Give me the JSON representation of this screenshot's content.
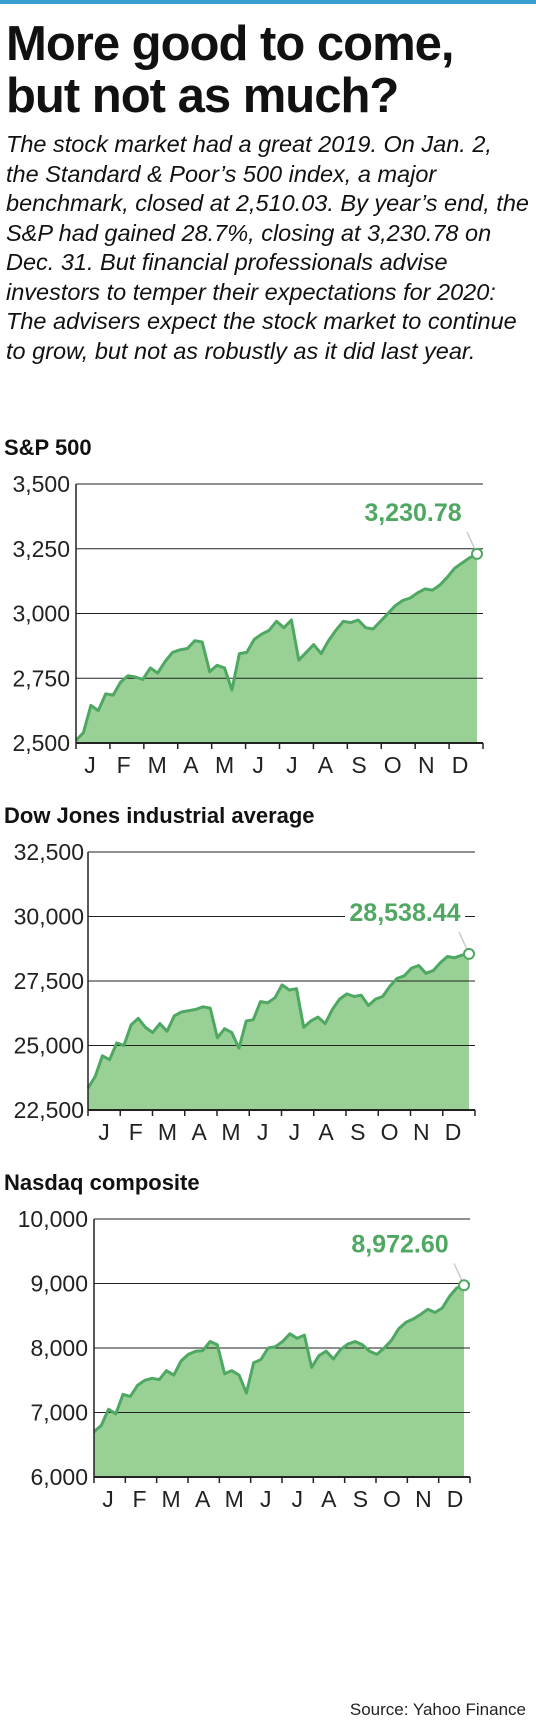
{
  "headline": "More good to come, but not as much?",
  "intro": "The stock market had a great 2019. On Jan. 2, the Standard & Poor’s 500 index, a major benchmark, closed at 2,510.03. By year’s end, the S&P had gained 28.7%, closing at 3,230.78 on Dec. 31. But financial professionals advise investors to temper their expectations for 2020: The advisers expect the stock market to continue to grow, but not as robustly as it did last year.",
  "source": "Source: Yahoo Finance",
  "colors": {
    "fill": "#99d096",
    "line": "#4ea862",
    "label": "#4ea862",
    "rule": "#3a9fd0"
  },
  "chart_data": [
    {
      "type": "area",
      "title": "S&P 500",
      "x_ticks": [
        "J",
        "F",
        "M",
        "A",
        "M",
        "J",
        "J",
        "A",
        "S",
        "O",
        "N",
        "D"
      ],
      "y_ticks": [
        "3,500",
        "3,250",
        "3,000",
        "2,750",
        "2,500"
      ],
      "ylim": [
        2500,
        3500
      ],
      "grid": true,
      "end_label": "3,230.78",
      "series": [
        {
          "values": [
            2510,
            2540,
            2645,
            2625,
            2690,
            2685,
            2735,
            2760,
            2755,
            2745,
            2790,
            2770,
            2815,
            2850,
            2860,
            2865,
            2895,
            2890,
            2775,
            2800,
            2790,
            2705,
            2845,
            2850,
            2900,
            2920,
            2935,
            2970,
            2945,
            2975,
            2820,
            2850,
            2880,
            2845,
            2895,
            2935,
            2970,
            2965,
            2975,
            2945,
            2940,
            2970,
            3000,
            3030,
            3050,
            3060,
            3080,
            3095,
            3090,
            3110,
            3140,
            3175,
            3195,
            3215,
            3230
          ]
        }
      ]
    },
    {
      "type": "area",
      "title": "Dow Jones industrial average",
      "x_ticks": [
        "J",
        "F",
        "M",
        "A",
        "M",
        "J",
        "J",
        "A",
        "S",
        "O",
        "N",
        "D"
      ],
      "y_ticks": [
        "32,500",
        "30,000",
        "27,500",
        "25,000",
        "22,500"
      ],
      "ylim": [
        22500,
        32500
      ],
      "grid": true,
      "end_label": "28,538.44",
      "series": [
        {
          "values": [
            23350,
            23800,
            24600,
            24450,
            25100,
            25000,
            25800,
            26050,
            25700,
            25500,
            25850,
            25550,
            26150,
            26300,
            26350,
            26400,
            26500,
            26450,
            25300,
            25650,
            25500,
            24900,
            25950,
            26000,
            26700,
            26650,
            26850,
            27350,
            27150,
            27200,
            25700,
            25950,
            26100,
            25850,
            26400,
            26800,
            27000,
            26900,
            26950,
            26550,
            26800,
            26900,
            27300,
            27600,
            27700,
            28000,
            28100,
            27800,
            27900,
            28200,
            28450,
            28400,
            28500,
            28550
          ]
        }
      ]
    },
    {
      "type": "area",
      "title": "Nasdaq composite",
      "x_ticks": [
        "J",
        "F",
        "M",
        "A",
        "M",
        "J",
        "J",
        "A",
        "S",
        "O",
        "N",
        "D"
      ],
      "y_ticks": [
        "10,000",
        "9,000",
        "8,000",
        "7,000",
        "6,000"
      ],
      "ylim": [
        6000,
        10000
      ],
      "grid": true,
      "end_label": "8,972.60",
      "series": [
        {
          "values": [
            6700,
            6800,
            7050,
            6980,
            7280,
            7250,
            7420,
            7500,
            7530,
            7510,
            7650,
            7580,
            7800,
            7900,
            7950,
            7960,
            8100,
            8050,
            7600,
            7650,
            7580,
            7300,
            7770,
            7820,
            8000,
            8020,
            8100,
            8220,
            8150,
            8200,
            7700,
            7880,
            7950,
            7830,
            7980,
            8060,
            8100,
            8050,
            7950,
            7900,
            8000,
            8120,
            8300,
            8400,
            8450,
            8520,
            8600,
            8550,
            8620,
            8800,
            8930,
            8972
          ]
        }
      ]
    }
  ]
}
